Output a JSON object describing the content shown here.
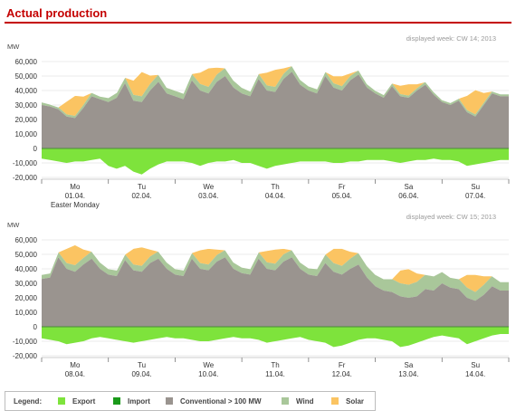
{
  "title": "Actual production",
  "legend": {
    "label": "Legend:",
    "items": [
      {
        "label": "Export",
        "color": "#7ee33c"
      },
      {
        "label": "Import",
        "color": "#1a9a1a"
      },
      {
        "label": "Conventional > 100 MW",
        "color": "#9a948f"
      },
      {
        "label": "Wind",
        "color": "#a9c79a"
      },
      {
        "label": "Solar",
        "color": "#fbc462"
      }
    ]
  },
  "chart_data": [
    {
      "type": "area",
      "subtitle": "displayed week: CW 14; 2013",
      "ylabel": "MW",
      "ylim": [
        -20000,
        60000
      ],
      "yticks": [
        "60,000",
        "50,000",
        "40,000",
        "30,000",
        "20,000",
        "10,000",
        "0",
        "-10,000",
        "-20,000"
      ],
      "day_labels": [
        {
          "day": "Mo",
          "date": "01.04.",
          "note": "Easter Monday"
        },
        {
          "day": "Tu",
          "date": "02.04."
        },
        {
          "day": "We",
          "date": "03.04."
        },
        {
          "day": "Th",
          "date": "04.04."
        },
        {
          "day": "Fr",
          "date": "05.04."
        },
        {
          "day": "Sa",
          "date": "06.04."
        },
        {
          "day": "Su",
          "date": "07.04."
        }
      ],
      "x_hours": [
        0,
        3,
        6,
        9,
        12,
        15,
        18,
        21
      ],
      "series": [
        {
          "name": "Conventional > 100 MW",
          "values": [
            [
              30000,
              29000,
              27000,
              22000,
              21000,
              28000,
              36000,
              34000
            ],
            [
              32000,
              35000,
              45000,
              33000,
              32000,
              40000,
              46000,
              38000
            ],
            [
              36000,
              34000,
              47000,
              40000,
              38000,
              46000,
              50000,
              42000
            ],
            [
              38000,
              36000,
              48000,
              40000,
              39000,
              48000,
              53000,
              44000
            ],
            [
              40000,
              38000,
              50000,
              42000,
              40000,
              47000,
              51000,
              42000
            ],
            [
              38000,
              35000,
              43000,
              36000,
              35000,
              40000,
              44000,
              37000
            ],
            [
              32000,
              30000,
              33000,
              25000,
              22000,
              30000,
              38000,
              36000
            ]
          ]
        },
        {
          "name": "Wind",
          "values": [
            [
              2000,
              1500,
              1500,
              1500,
              1500,
              2000,
              2500,
              2000
            ],
            [
              3000,
              3500,
              4000,
              4000,
              4000,
              4500,
              5000,
              4000
            ],
            [
              4000,
              4000,
              4500,
              4500,
              4500,
              5000,
              5500,
              5000
            ],
            [
              4000,
              3500,
              3500,
              3500,
              3500,
              3500,
              4000,
              3500
            ],
            [
              3000,
              3000,
              3000,
              3000,
              3000,
              3000,
              3000,
              2500
            ],
            [
              2000,
              2000,
              2000,
              1500,
              1500,
              1500,
              2000,
              2000
            ],
            [
              1500,
              1500,
              1500,
              1500,
              1500,
              1500,
              1500,
              1500
            ]
          ]
        },
        {
          "name": "Solar",
          "values": [
            [
              0,
              0,
              0,
              9000,
              14000,
              6000,
              0,
              0
            ],
            [
              0,
              0,
              0,
              10000,
              17000,
              6000,
              0,
              0
            ],
            [
              0,
              0,
              0,
              8000,
              13000,
              5000,
              0,
              0
            ],
            [
              0,
              0,
              0,
              9000,
              12000,
              4000,
              0,
              0
            ],
            [
              0,
              0,
              0,
              5000,
              7000,
              2000,
              0,
              0
            ],
            [
              0,
              0,
              0,
              6000,
              8000,
              3000,
              0,
              0
            ],
            [
              0,
              0,
              0,
              10000,
              17000,
              7000,
              0,
              0
            ]
          ]
        },
        {
          "name": "Export",
          "values": [
            [
              -7000,
              -8000,
              -9000,
              -10000,
              -9000,
              -9000,
              -8000,
              -7000
            ],
            [
              -12000,
              -14000,
              -12000,
              -16000,
              -18000,
              -14000,
              -11000,
              -9000
            ],
            [
              -9000,
              -9000,
              -10000,
              -12000,
              -10000,
              -9000,
              -9000,
              -8000
            ],
            [
              -10000,
              -10000,
              -12000,
              -14000,
              -12000,
              -11000,
              -10000,
              -9000
            ],
            [
              -9000,
              -9000,
              -9000,
              -10000,
              -10000,
              -9000,
              -9000,
              -8000
            ],
            [
              -8000,
              -8000,
              -9000,
              -10000,
              -9000,
              -8000,
              -8000,
              -7000
            ],
            [
              -8000,
              -8000,
              -9000,
              -12000,
              -11000,
              -10000,
              -9000,
              -8000
            ]
          ]
        }
      ]
    },
    {
      "type": "area",
      "subtitle": "displayed week: CW 15; 2013",
      "ylabel": "MW",
      "ylim": [
        -20000,
        60000
      ],
      "yticks": [
        "60,000",
        "50,000",
        "40,000",
        "30,000",
        "20,000",
        "10,000",
        "0",
        "-10,000",
        "-20,000"
      ],
      "day_labels": [
        {
          "day": "Mo",
          "date": "08.04."
        },
        {
          "day": "Tu",
          "date": "09.04."
        },
        {
          "day": "We",
          "date": "10.04."
        },
        {
          "day": "Th",
          "date": "11.04."
        },
        {
          "day": "Fr",
          "date": "12.04."
        },
        {
          "day": "Sa",
          "date": "13.04."
        },
        {
          "day": "Su",
          "date": "14.04."
        }
      ],
      "x_hours": [
        0,
        3,
        6,
        9,
        12,
        15,
        18,
        21
      ],
      "series": [
        {
          "name": "Conventional > 100 MW",
          "values": [
            [
              33000,
              34000,
              48000,
              40000,
              38000,
              43000,
              47000,
              40000
            ],
            [
              36000,
              35000,
              46000,
              39000,
              38000,
              44000,
              47000,
              40000
            ],
            [
              36000,
              35000,
              47000,
              40000,
              39000,
              45000,
              48000,
              40000
            ],
            [
              37000,
              36000,
              47000,
              40000,
              39000,
              45000,
              48000,
              40000
            ],
            [
              36000,
              35000,
              44000,
              38000,
              36000,
              40000,
              43000,
              34000
            ],
            [
              28000,
              25000,
              24000,
              21000,
              20000,
              21000,
              26000,
              25000
            ],
            [
              30000,
              27000,
              26000,
              20000,
              18000,
              22000,
              28000,
              25000
            ]
          ]
        },
        {
          "name": "Wind",
          "values": [
            [
              3000,
              3000,
              3500,
              4000,
              4500,
              4500,
              5000,
              4500
            ],
            [
              4000,
              4000,
              4000,
              4000,
              4000,
              4500,
              5000,
              4500
            ],
            [
              4000,
              4000,
              4000,
              4000,
              4000,
              4500,
              5000,
              4500
            ],
            [
              4000,
              4000,
              4500,
              4500,
              4500,
              5000,
              5000,
              4500
            ],
            [
              4500,
              5000,
              6000,
              6000,
              6000,
              7000,
              8000,
              8000
            ],
            [
              8000,
              8000,
              9000,
              9000,
              9000,
              10000,
              10000,
              10000
            ],
            [
              8000,
              7000,
              7000,
              7000,
              6000,
              7000,
              7000,
              6000
            ]
          ]
        },
        {
          "name": "Solar",
          "values": [
            [
              0,
              0,
              0,
              10000,
              14000,
              6000,
              0,
              0
            ],
            [
              0,
              0,
              0,
              11000,
              13000,
              5000,
              0,
              0
            ],
            [
              0,
              0,
              0,
              9000,
              11000,
              4000,
              0,
              0
            ],
            [
              0,
              0,
              0,
              8000,
              10000,
              4000,
              0,
              0
            ],
            [
              0,
              0,
              0,
              10000,
              12000,
              5000,
              0,
              0
            ],
            [
              0,
              0,
              0,
              9000,
              11000,
              6000,
              0,
              0
            ],
            [
              0,
              0,
              0,
              9000,
              12000,
              6000,
              0,
              0
            ]
          ]
        },
        {
          "name": "Export",
          "values": [
            [
              -8000,
              -9000,
              -10000,
              -12000,
              -11000,
              -10000,
              -8000,
              -7000
            ],
            [
              -8000,
              -9000,
              -10000,
              -11000,
              -10000,
              -9000,
              -8000,
              -7000
            ],
            [
              -8000,
              -8000,
              -9000,
              -10000,
              -10000,
              -9000,
              -8000,
              -7000
            ],
            [
              -8000,
              -8000,
              -9000,
              -11000,
              -10000,
              -9000,
              -8000,
              -7000
            ],
            [
              -9000,
              -10000,
              -11000,
              -14000,
              -13000,
              -11000,
              -9000,
              -8000
            ],
            [
              -8000,
              -9000,
              -10000,
              -14000,
              -13000,
              -11000,
              -9000,
              -7000
            ],
            [
              -6000,
              -7000,
              -8000,
              -12000,
              -10000,
              -8000,
              -6000,
              -5000
            ]
          ]
        }
      ]
    }
  ]
}
